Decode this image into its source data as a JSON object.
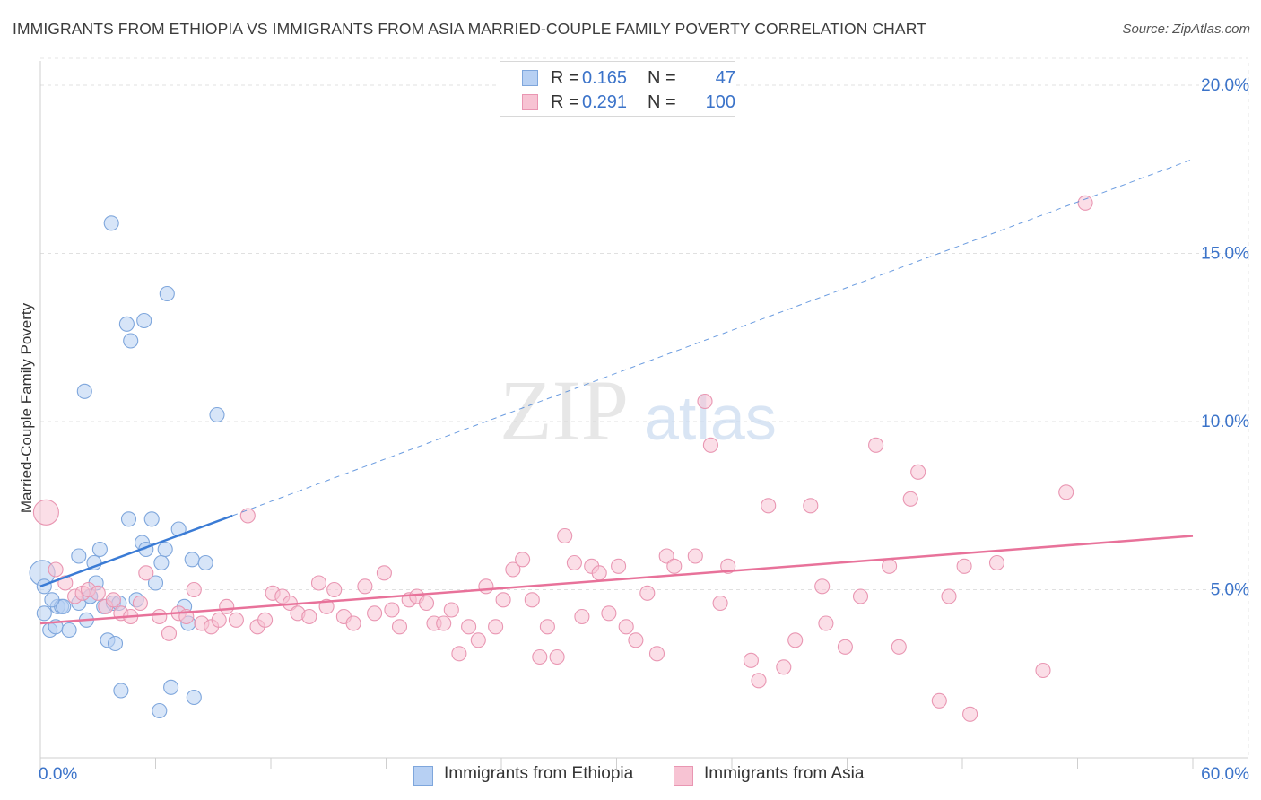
{
  "header": {
    "title": "IMMIGRANTS FROM ETHIOPIA VS IMMIGRANTS FROM ASIA MARRIED-COUPLE FAMILY POVERTY CORRELATION CHART",
    "source": "Source: ZipAtlas.com"
  },
  "watermark": "ZIPatlas",
  "colors": {
    "ethiopia_fill": "#b7d0f3",
    "ethiopia_stroke": "#7ea6dc",
    "ethiopia_line": "#3a7bd5",
    "asia_fill": "#f7c3d3",
    "asia_stroke": "#e996b2",
    "asia_line": "#e8729a",
    "value_blue": "#3b73c9"
  },
  "legend": {
    "r_label": "R =",
    "n_label": "N =",
    "ethiopia": {
      "r": "0.165",
      "n": "47"
    },
    "asia": {
      "r": "0.291",
      "n": "100"
    }
  },
  "chart_data": {
    "type": "scatter",
    "title": "IMMIGRANTS FROM ETHIOPIA VS IMMIGRANTS FROM ASIA MARRIED-COUPLE FAMILY POVERTY CORRELATION CHART",
    "xlabel": "",
    "ylabel": "Married-Couple Family Poverty",
    "xlim": [
      0,
      60
    ],
    "ylim": [
      0,
      20.8
    ],
    "x_tick_labels": [
      "0.0%",
      "60.0%"
    ],
    "y_ticks": [
      5,
      10,
      15,
      20
    ],
    "y_tick_labels": [
      "5.0%",
      "10.0%",
      "15.0%",
      "20.0%"
    ],
    "grid": true,
    "series": [
      {
        "name": "Immigrants from Ethiopia",
        "color": "#b7d0f3",
        "regression": {
          "x": [
            0,
            10
          ],
          "y": [
            5.1,
            7.2
          ],
          "dashed_extension_to_x": 60,
          "dashed_end_y": 17.8
        },
        "points": [
          [
            0.1,
            5.5
          ],
          [
            0.2,
            5.1
          ],
          [
            0.2,
            4.3
          ],
          [
            0.5,
            3.8
          ],
          [
            0.8,
            3.9
          ],
          [
            0.9,
            4.5
          ],
          [
            1.1,
            4.5
          ],
          [
            1.5,
            3.8
          ],
          [
            2.0,
            4.6
          ],
          [
            2.0,
            6.0
          ],
          [
            2.4,
            4.1
          ],
          [
            2.6,
            4.8
          ],
          [
            2.9,
            5.2
          ],
          [
            2.8,
            5.8
          ],
          [
            3.1,
            6.2
          ],
          [
            3.3,
            4.5
          ],
          [
            3.5,
            3.5
          ],
          [
            3.8,
            4.6
          ],
          [
            3.9,
            3.4
          ],
          [
            4.1,
            4.6
          ],
          [
            4.2,
            2.0
          ],
          [
            4.6,
            7.1
          ],
          [
            5.0,
            4.7
          ],
          [
            5.3,
            6.4
          ],
          [
            5.5,
            6.2
          ],
          [
            5.8,
            7.1
          ],
          [
            6.0,
            5.2
          ],
          [
            6.3,
            5.8
          ],
          [
            6.5,
            6.2
          ],
          [
            6.6,
            13.8
          ],
          [
            7.2,
            6.8
          ],
          [
            7.5,
            4.5
          ],
          [
            7.7,
            4.0
          ],
          [
            7.9,
            5.9
          ],
          [
            8.0,
            1.8
          ],
          [
            8.6,
            5.8
          ],
          [
            6.8,
            2.1
          ],
          [
            6.2,
            1.4
          ],
          [
            9.2,
            10.2
          ],
          [
            3.7,
            15.9
          ],
          [
            2.3,
            10.9
          ],
          [
            4.5,
            12.9
          ],
          [
            4.7,
            12.4
          ],
          [
            5.4,
            13.0
          ],
          [
            2.6,
            4.8
          ],
          [
            1.2,
            4.5
          ],
          [
            0.6,
            4.7
          ]
        ]
      },
      {
        "name": "Immigrants from Asia",
        "color": "#f7c3d3",
        "regression": {
          "x": [
            0,
            60
          ],
          "y": [
            4.0,
            6.6
          ]
        },
        "points": [
          [
            0.3,
            7.3
          ],
          [
            0.8,
            5.6
          ],
          [
            1.3,
            5.2
          ],
          [
            1.8,
            4.8
          ],
          [
            2.2,
            4.9
          ],
          [
            2.5,
            5.0
          ],
          [
            3.0,
            4.9
          ],
          [
            3.4,
            4.5
          ],
          [
            3.8,
            4.7
          ],
          [
            4.2,
            4.3
          ],
          [
            4.7,
            4.2
          ],
          [
            5.2,
            4.6
          ],
          [
            5.5,
            5.5
          ],
          [
            6.2,
            4.2
          ],
          [
            6.7,
            3.7
          ],
          [
            7.2,
            4.3
          ],
          [
            7.6,
            4.2
          ],
          [
            8.0,
            5.0
          ],
          [
            8.4,
            4.0
          ],
          [
            8.9,
            3.9
          ],
          [
            9.3,
            4.1
          ],
          [
            9.7,
            4.5
          ],
          [
            10.2,
            4.1
          ],
          [
            10.8,
            7.2
          ],
          [
            11.3,
            3.9
          ],
          [
            11.7,
            4.1
          ],
          [
            12.1,
            4.9
          ],
          [
            12.6,
            4.8
          ],
          [
            13.0,
            4.6
          ],
          [
            13.4,
            4.3
          ],
          [
            14.0,
            4.2
          ],
          [
            14.5,
            5.2
          ],
          [
            14.9,
            4.5
          ],
          [
            15.3,
            5.0
          ],
          [
            15.8,
            4.2
          ],
          [
            16.3,
            4.0
          ],
          [
            16.9,
            5.1
          ],
          [
            17.4,
            4.3
          ],
          [
            17.9,
            5.5
          ],
          [
            18.3,
            4.4
          ],
          [
            18.7,
            3.9
          ],
          [
            19.2,
            4.7
          ],
          [
            19.6,
            4.8
          ],
          [
            20.1,
            4.6
          ],
          [
            20.5,
            4.0
          ],
          [
            21.0,
            4.0
          ],
          [
            21.4,
            4.4
          ],
          [
            21.8,
            3.1
          ],
          [
            22.3,
            3.9
          ],
          [
            22.8,
            3.5
          ],
          [
            23.2,
            5.1
          ],
          [
            23.7,
            3.9
          ],
          [
            24.1,
            4.7
          ],
          [
            24.6,
            5.6
          ],
          [
            25.1,
            5.9
          ],
          [
            25.6,
            4.7
          ],
          [
            26.0,
            3.0
          ],
          [
            26.4,
            3.9
          ],
          [
            26.9,
            3.0
          ],
          [
            27.3,
            6.6
          ],
          [
            27.8,
            5.8
          ],
          [
            28.2,
            4.2
          ],
          [
            28.7,
            5.7
          ],
          [
            29.1,
            5.5
          ],
          [
            29.6,
            4.3
          ],
          [
            30.1,
            5.7
          ],
          [
            30.5,
            3.9
          ],
          [
            31.0,
            3.5
          ],
          [
            31.6,
            4.9
          ],
          [
            32.1,
            3.1
          ],
          [
            32.6,
            6.0
          ],
          [
            33.0,
            5.7
          ],
          [
            34.1,
            6.0
          ],
          [
            34.6,
            10.6
          ],
          [
            34.9,
            9.3
          ],
          [
            35.4,
            4.6
          ],
          [
            35.8,
            5.7
          ],
          [
            37.0,
            2.9
          ],
          [
            37.4,
            2.3
          ],
          [
            37.9,
            7.5
          ],
          [
            38.7,
            2.7
          ],
          [
            39.3,
            3.5
          ],
          [
            40.1,
            7.5
          ],
          [
            40.7,
            5.1
          ],
          [
            40.9,
            4.0
          ],
          [
            41.9,
            3.3
          ],
          [
            42.7,
            4.8
          ],
          [
            43.5,
            9.3
          ],
          [
            44.2,
            5.7
          ],
          [
            44.7,
            3.3
          ],
          [
            45.3,
            7.7
          ],
          [
            45.7,
            8.5
          ],
          [
            46.8,
            1.7
          ],
          [
            47.3,
            4.8
          ],
          [
            48.1,
            5.7
          ],
          [
            48.4,
            1.3
          ],
          [
            49.8,
            5.8
          ],
          [
            52.2,
            2.6
          ],
          [
            53.4,
            7.9
          ],
          [
            54.4,
            16.5
          ]
        ]
      }
    ]
  }
}
